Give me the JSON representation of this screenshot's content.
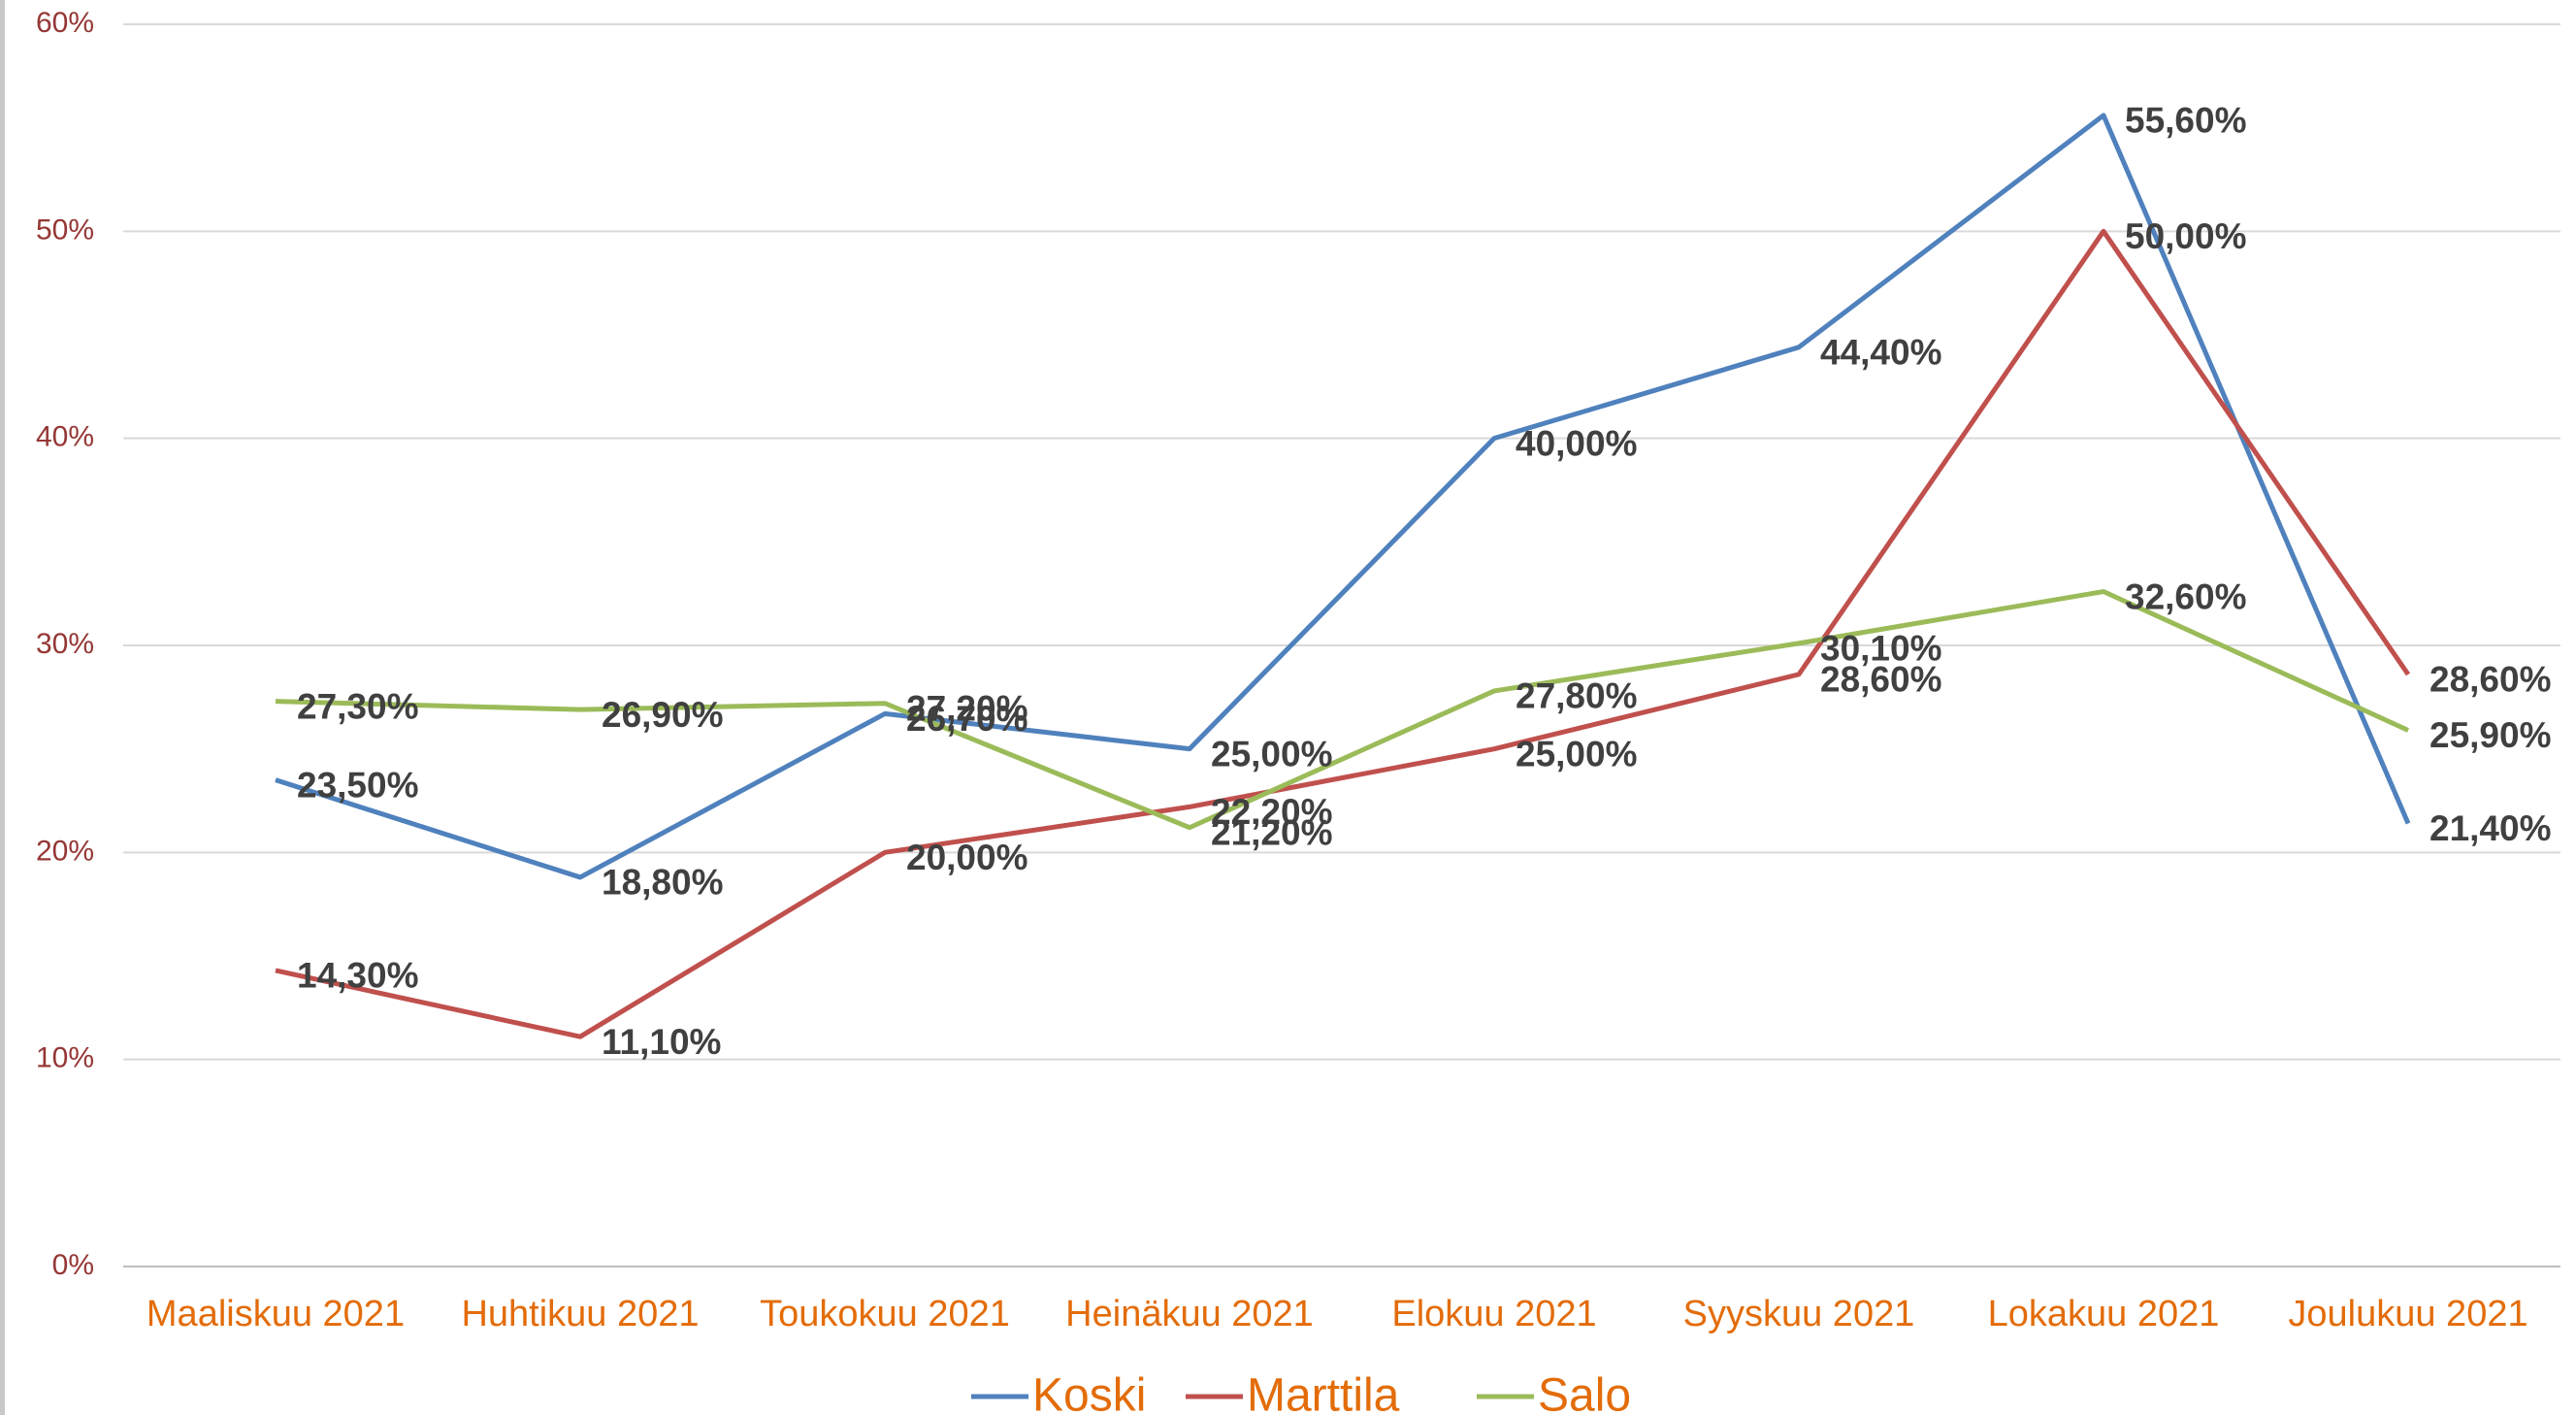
{
  "chart_data": {
    "type": "line",
    "categories": [
      "Maaliskuu 2021",
      "Huhtikuu 2021",
      "Toukokuu 2021",
      "Heinäkuu 2021",
      "Elokuu 2021",
      "Syyskuu 2021",
      "Lokakuu 2021",
      "Joulukuu 2021"
    ],
    "series": [
      {
        "name": "Koski",
        "color": "#4f81bd",
        "values": [
          23.5,
          18.8,
          26.7,
          25.0,
          40.0,
          44.4,
          55.6,
          21.4
        ],
        "value_labels": [
          "23,50%",
          "18,80%",
          "26,70%",
          "25,00%",
          "40,00%",
          "44,40%",
          "55,60%",
          "21,40%"
        ]
      },
      {
        "name": "Marttila",
        "color": "#c0504d",
        "values": [
          14.3,
          11.1,
          20.0,
          22.2,
          25.0,
          28.6,
          50.0,
          28.6
        ],
        "value_labels": [
          "14,30%",
          "11,10%",
          "20,00%",
          "22,20%",
          "25,00%",
          "28,60%",
          "50,00%",
          "28,60%"
        ]
      },
      {
        "name": "Salo",
        "color": "#9bbb59",
        "values": [
          27.3,
          26.9,
          27.2,
          21.2,
          27.8,
          30.1,
          32.6,
          25.9
        ],
        "value_labels": [
          "27,30%",
          "26,90%",
          "27,20%",
          "21,20%",
          "27,80%",
          "30,10%",
          "32,60%",
          "25,90%"
        ]
      }
    ],
    "ylim": [
      0,
      60
    ],
    "yticks": [
      {
        "value": 0,
        "label": "0%"
      },
      {
        "value": 10,
        "label": "10%"
      },
      {
        "value": 20,
        "label": "20%"
      },
      {
        "value": 30,
        "label": "30%"
      },
      {
        "value": 40,
        "label": "40%"
      },
      {
        "value": 50,
        "label": "50%"
      },
      {
        "value": 60,
        "label": "60%"
      }
    ],
    "grid": true,
    "legend": "bottom"
  }
}
